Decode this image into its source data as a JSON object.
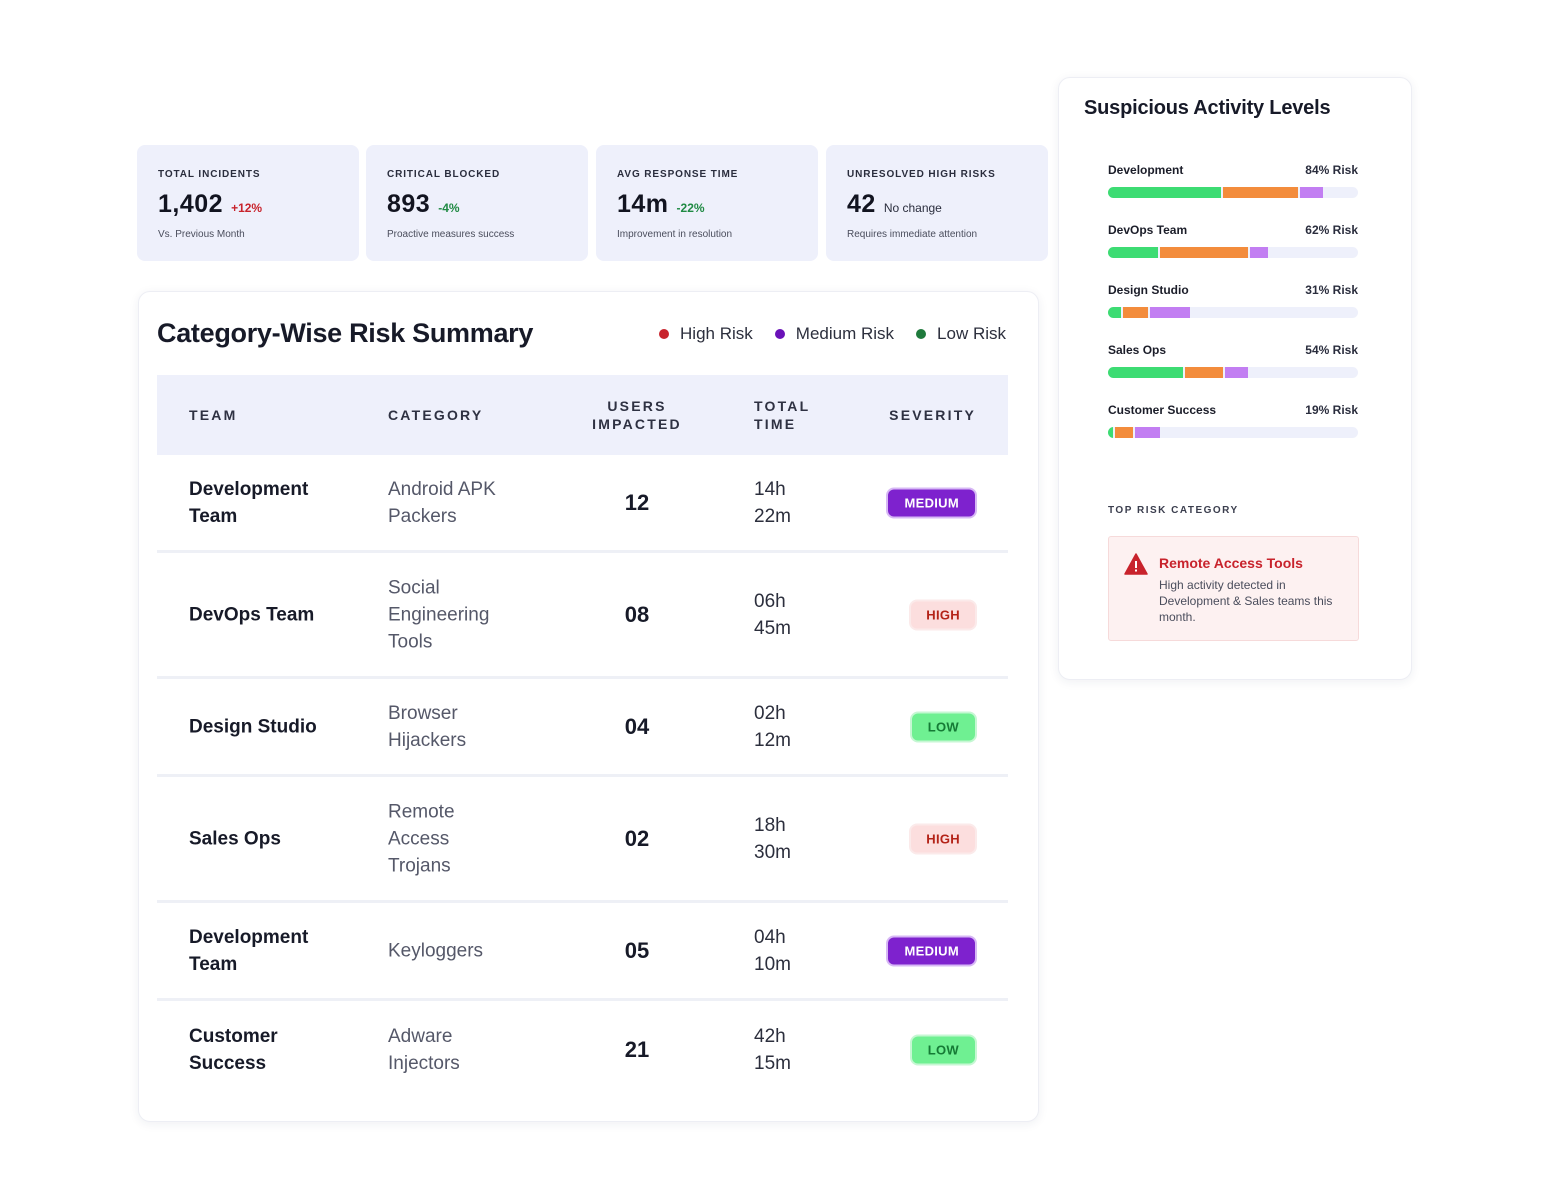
{
  "kpis": [
    {
      "label": "TOTAL INCIDENTS",
      "value": "1,402",
      "delta": "+12%",
      "delta_type": "up",
      "sub": "Vs. Previous Month"
    },
    {
      "label": "CRITICAL BLOCKED",
      "value": "893",
      "delta": "-4%",
      "delta_type": "down",
      "sub": "Proactive measures success"
    },
    {
      "label": "AVG RESPONSE TIME",
      "value": "14m",
      "delta": "-22%",
      "delta_type": "down",
      "sub": "Improvement in resolution"
    },
    {
      "label": "UNRESOLVED HIGH RISKS",
      "value": "42",
      "delta": "No change",
      "delta_type": "neutral",
      "sub": "Requires immediate attention"
    }
  ],
  "summary": {
    "title": "Category-Wise Risk Summary",
    "legend": [
      {
        "label": "High Risk",
        "color": "#c8232c"
      },
      {
        "label": "Medium Risk",
        "color": "#6a11b8"
      },
      {
        "label": "Low Risk",
        "color": "#1f7a3c"
      }
    ],
    "columns": {
      "team": "TEAM",
      "category": "CATEGORY",
      "users_1": "USERS",
      "users_2": "IMPACTED",
      "time_1": "TOTAL",
      "time_2": "TIME",
      "severity": "SEVERITY"
    },
    "rows": [
      {
        "team_1": "Development",
        "team_2": "Team",
        "cat_1": "Android APK",
        "cat_2": "Packers",
        "cat_3": "",
        "users": "12",
        "time_1": "14h",
        "time_2": "22m",
        "severity": "MEDIUM",
        "level": "medium"
      },
      {
        "team_1": "DevOps Team",
        "team_2": "",
        "cat_1": "Social",
        "cat_2": "Engineering",
        "cat_3": "Tools",
        "users": "08",
        "time_1": "06h",
        "time_2": "45m",
        "severity": "HIGH",
        "level": "high"
      },
      {
        "team_1": "Design Studio",
        "team_2": "",
        "cat_1": "Browser",
        "cat_2": "Hijackers",
        "cat_3": "",
        "users": "04",
        "time_1": "02h",
        "time_2": "12m",
        "severity": "LOW",
        "level": "low"
      },
      {
        "team_1": "Sales Ops",
        "team_2": "",
        "cat_1": "Remote",
        "cat_2": "Access",
        "cat_3": "Trojans",
        "users": "02",
        "time_1": "18h",
        "time_2": "30m",
        "severity": "HIGH",
        "level": "high"
      },
      {
        "team_1": "Development",
        "team_2": "Team",
        "cat_1": "Keyloggers",
        "cat_2": "",
        "cat_3": "",
        "users": "05",
        "time_1": "04h",
        "time_2": "10m",
        "severity": "MEDIUM",
        "level": "medium"
      },
      {
        "team_1": "Customer",
        "team_2": "Success",
        "cat_1": "Adware",
        "cat_2": "Injectors",
        "cat_3": "",
        "users": "21",
        "time_1": "42h",
        "time_2": "15m",
        "severity": "LOW",
        "level": "low"
      }
    ]
  },
  "activity": {
    "title": "Suspicious Activity Levels",
    "items": [
      {
        "name": "Development",
        "risk": "84% Risk",
        "segments": [
          {
            "color": "green",
            "fraction": 0.45
          },
          {
            "color": "orange",
            "fraction": 0.3
          },
          {
            "color": "purple",
            "fraction": 0.09
          }
        ]
      },
      {
        "name": "DevOps Team",
        "risk": "62% Risk",
        "segments": [
          {
            "color": "green",
            "fraction": 0.2
          },
          {
            "color": "orange",
            "fraction": 0.35
          },
          {
            "color": "purple",
            "fraction": 0.07
          }
        ]
      },
      {
        "name": "Design Studio",
        "risk": "31% Risk",
        "segments": [
          {
            "color": "green",
            "fraction": 0.05
          },
          {
            "color": "orange",
            "fraction": 0.1
          },
          {
            "color": "purple",
            "fraction": 0.16
          }
        ]
      },
      {
        "name": "Sales Ops",
        "risk": "54% Risk",
        "segments": [
          {
            "color": "green",
            "fraction": 0.3
          },
          {
            "color": "orange",
            "fraction": 0.15
          },
          {
            "color": "purple",
            "fraction": 0.09
          }
        ]
      },
      {
        "name": "Customer Success",
        "risk": "19% Risk",
        "segments": [
          {
            "color": "green",
            "fraction": 0.02
          },
          {
            "color": "orange",
            "fraction": 0.07
          },
          {
            "color": "purple",
            "fraction": 0.1
          }
        ]
      }
    ],
    "top_risk_label": "TOP RISK CATEGORY",
    "top_risk": {
      "icon": "warning-icon",
      "title": "Remote Access Tools",
      "description": "High activity detected in Development & Sales teams this month."
    }
  },
  "colors": {
    "accent_purple": "#7e22ce",
    "high_red": "#c8232c",
    "low_green": "#3ddc73",
    "card_bg": "#eef0fb"
  }
}
